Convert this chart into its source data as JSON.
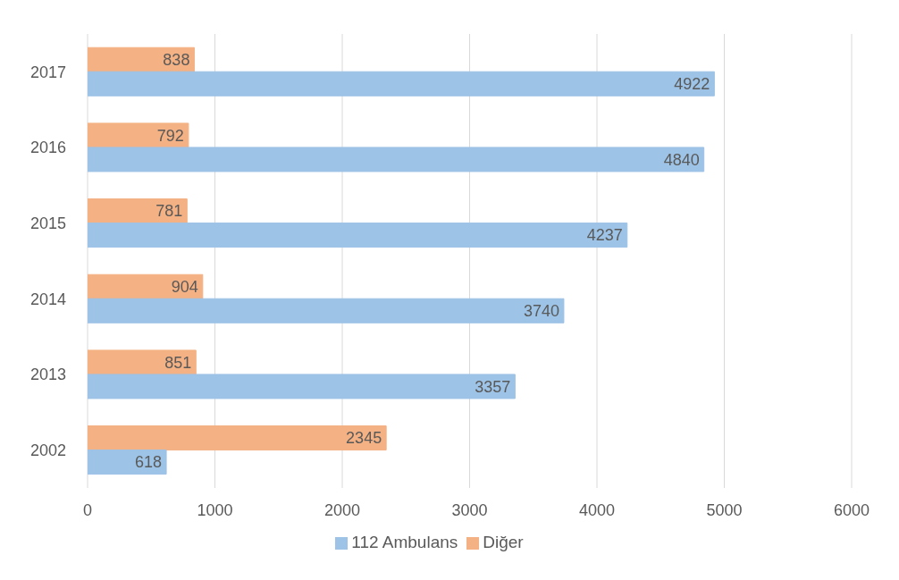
{
  "chart_data": {
    "type": "bar",
    "orientation": "horizontal",
    "categories": [
      "2017",
      "2016",
      "2015",
      "2014",
      "2013",
      "2002"
    ],
    "series": [
      {
        "name": "Diğer",
        "color": "#f4b183",
        "values": [
          838,
          792,
          781,
          904,
          851,
          2345
        ]
      },
      {
        "name": "112 Ambulans",
        "color": "#9dc3e6",
        "values": [
          4922,
          4840,
          4237,
          3740,
          3357,
          618
        ]
      }
    ],
    "xlim": [
      0,
      6000
    ],
    "xticks": [
      0,
      1000,
      2000,
      3000,
      4000,
      5000,
      6000
    ],
    "grid": "x",
    "legend": "bottom",
    "data_labels": true
  }
}
